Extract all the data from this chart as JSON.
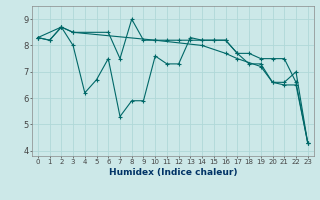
{
  "xlabel": "Humidex (Indice chaleur)",
  "bg_color": "#cce8e8",
  "line_color": "#006868",
  "grid_color": "#b0d8d8",
  "xlim": [
    -0.5,
    23.5
  ],
  "ylim": [
    3.8,
    9.5
  ],
  "yticks": [
    4,
    5,
    6,
    7,
    8,
    9
  ],
  "xticks": [
    0,
    1,
    2,
    3,
    4,
    5,
    6,
    7,
    8,
    9,
    10,
    11,
    12,
    13,
    14,
    15,
    16,
    17,
    18,
    19,
    20,
    21,
    22,
    23
  ],
  "series": [
    {
      "x": [
        0,
        1,
        2,
        3,
        4,
        5,
        6,
        7,
        8,
        9,
        10,
        11,
        12,
        13,
        14,
        15,
        16,
        17,
        18,
        19,
        20,
        21,
        22,
        23
      ],
      "y": [
        8.3,
        8.2,
        8.7,
        8.0,
        6.2,
        6.7,
        7.5,
        5.3,
        5.9,
        5.9,
        7.6,
        7.3,
        7.3,
        8.3,
        8.2,
        8.2,
        8.2,
        7.7,
        7.3,
        7.3,
        6.6,
        6.6,
        7.0,
        4.3
      ]
    },
    {
      "x": [
        0,
        2,
        3,
        6,
        7,
        8,
        9,
        10,
        11,
        12,
        13,
        14,
        15,
        16,
        17,
        18,
        19,
        20,
        21,
        22,
        23
      ],
      "y": [
        8.3,
        8.7,
        8.5,
        8.5,
        7.5,
        9.0,
        8.2,
        8.2,
        8.2,
        8.2,
        8.2,
        8.2,
        8.2,
        8.2,
        7.7,
        7.7,
        7.5,
        7.5,
        7.5,
        6.6,
        4.3
      ]
    },
    {
      "x": [
        0,
        1,
        2,
        3,
        10,
        14,
        16,
        17,
        19,
        20,
        21,
        22,
        23
      ],
      "y": [
        8.3,
        8.2,
        8.7,
        8.5,
        8.2,
        8.0,
        7.7,
        7.5,
        7.2,
        6.6,
        6.5,
        6.5,
        4.3
      ]
    }
  ]
}
